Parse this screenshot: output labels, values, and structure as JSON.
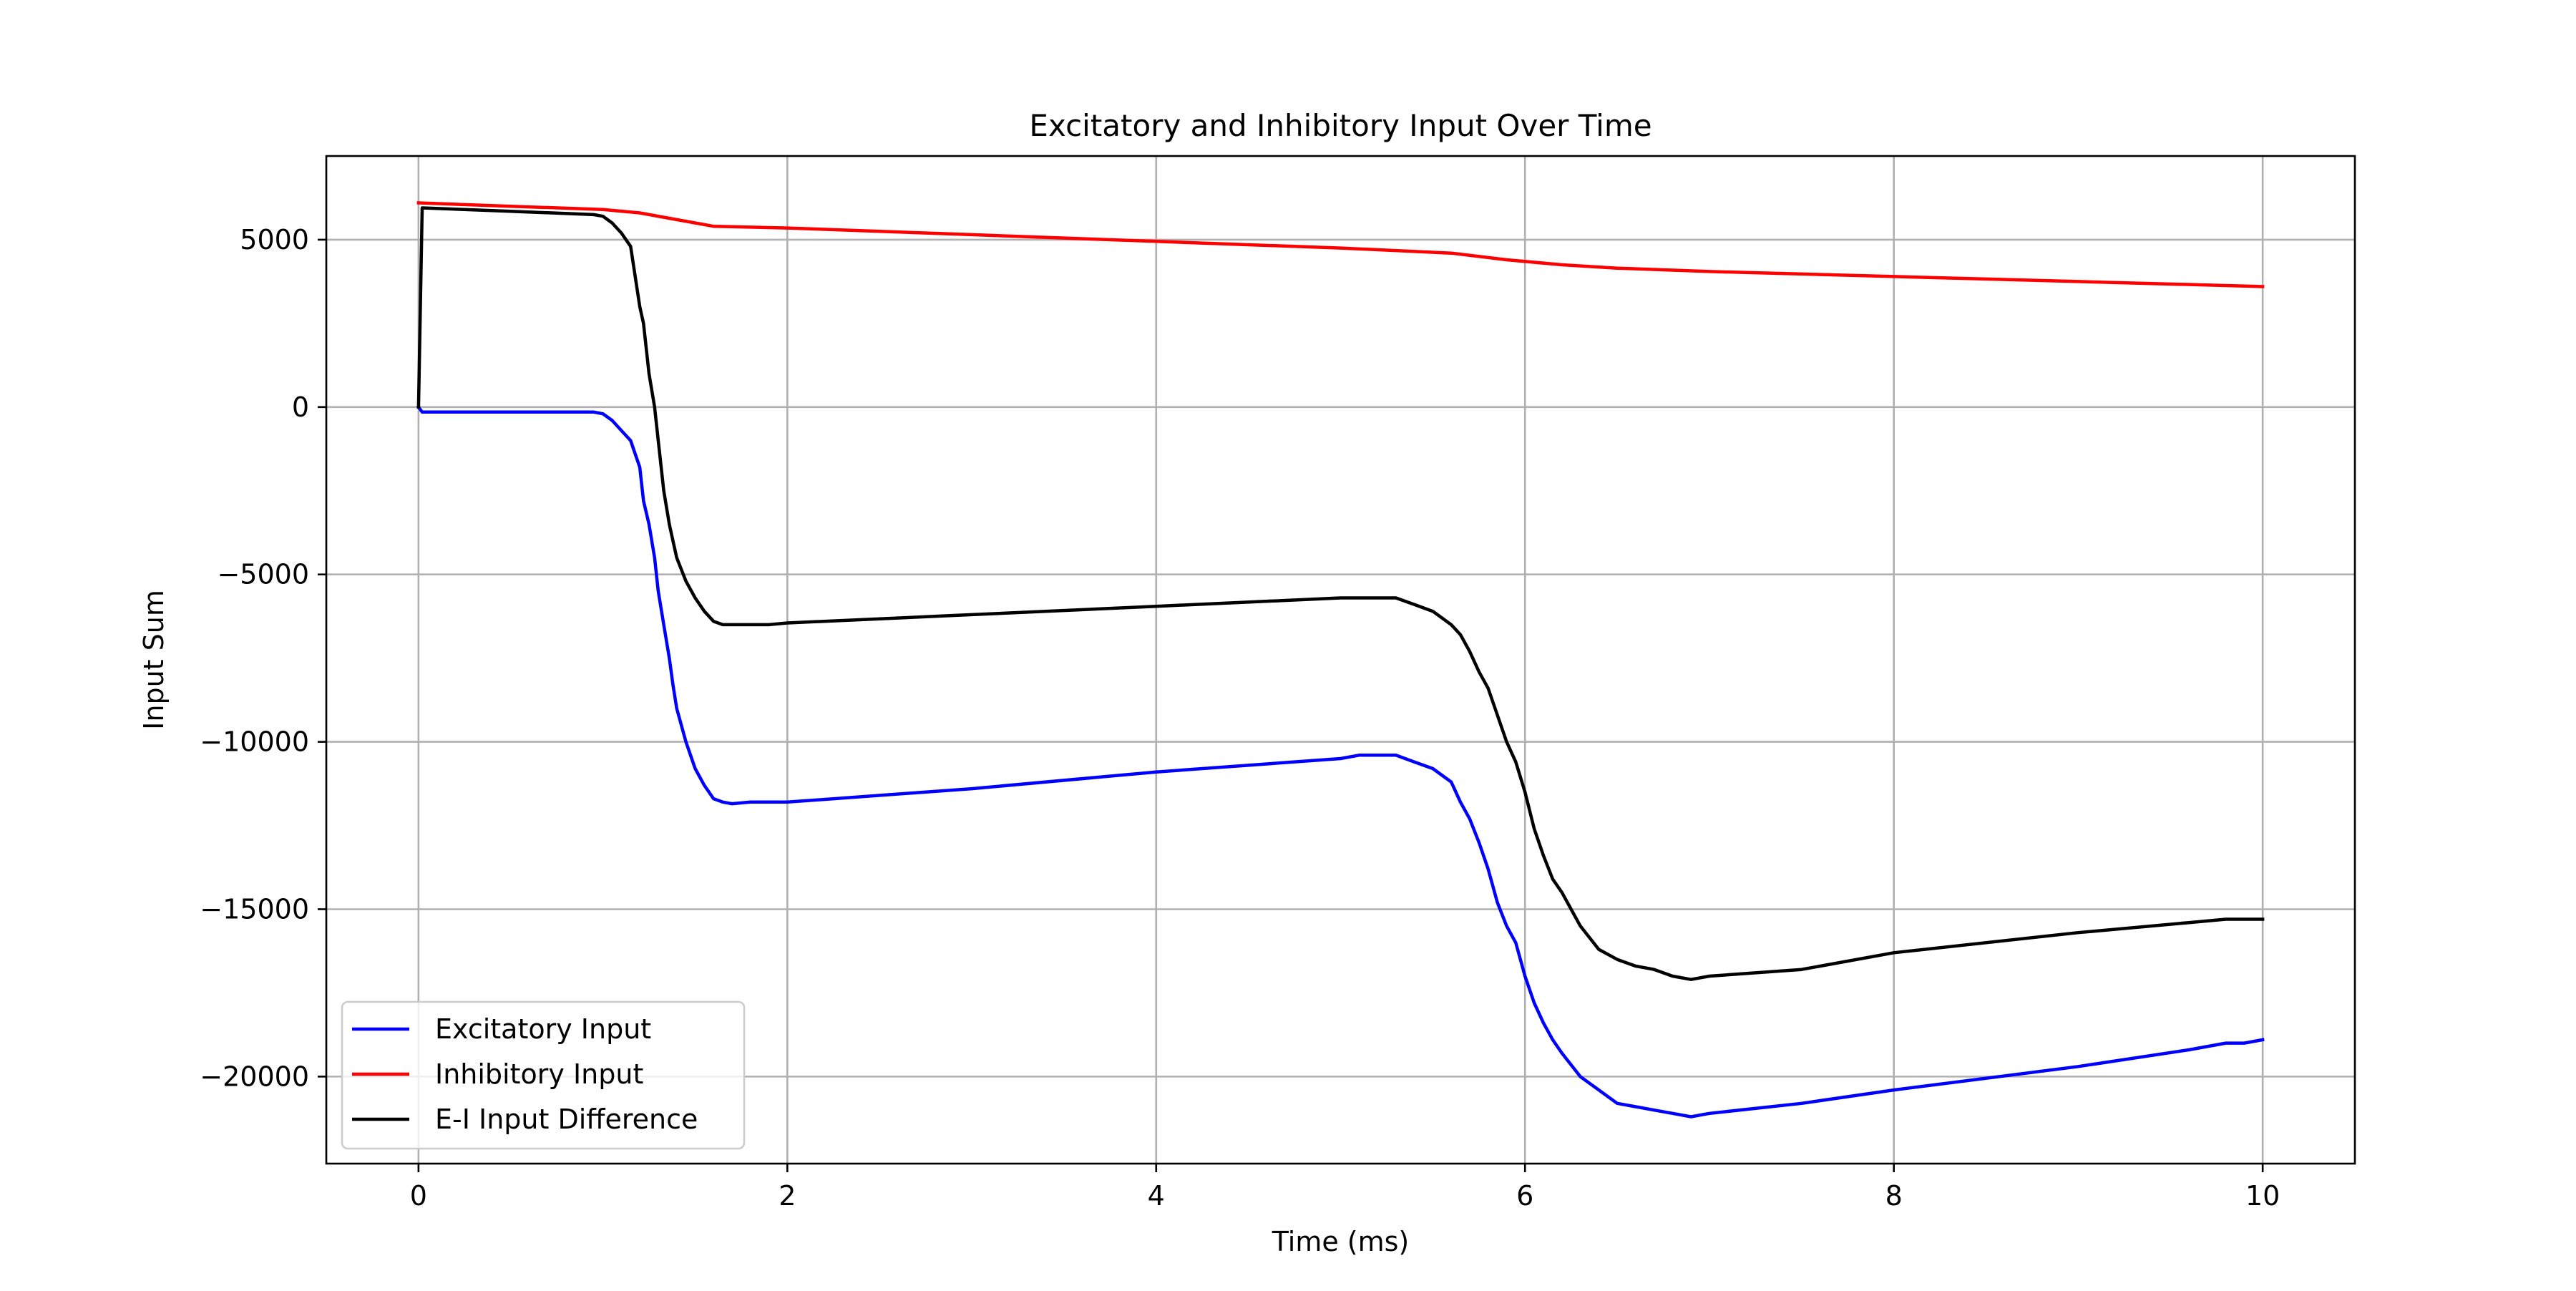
{
  "chart_data": {
    "type": "line",
    "title": "Excitatory and Inhibitory Input Over Time",
    "xlabel": "Time (ms)",
    "ylabel": "Input Sum",
    "xlim": [
      -0.5,
      10.5
    ],
    "ylim": [
      -22600,
      7500
    ],
    "xticks": [
      0,
      2,
      4,
      6,
      8,
      10
    ],
    "yticks": [
      5000,
      0,
      -5000,
      -10000,
      -15000,
      -20000
    ],
    "xtick_labels": [
      "0",
      "2",
      "4",
      "6",
      "8",
      "10"
    ],
    "ytick_labels": [
      "5000",
      "0",
      "−5000",
      "−10000",
      "−15000",
      "−20000"
    ],
    "grid": true,
    "legend_position": "lower-left",
    "series": [
      {
        "name": "Excitatory Input",
        "color": "#0000ff",
        "x": [
          0,
          0.02,
          0.5,
          0.95,
          1.0,
          1.05,
          1.1,
          1.15,
          1.2,
          1.22,
          1.25,
          1.28,
          1.3,
          1.33,
          1.36,
          1.38,
          1.4,
          1.45,
          1.5,
          1.55,
          1.6,
          1.65,
          1.7,
          1.8,
          1.9,
          2.0,
          3.0,
          4.0,
          5.0,
          5.1,
          5.3,
          5.4,
          5.5,
          5.6,
          5.65,
          5.7,
          5.75,
          5.8,
          5.85,
          5.9,
          5.95,
          6.0,
          6.05,
          6.1,
          6.15,
          6.2,
          6.3,
          6.4,
          6.5,
          6.6,
          6.7,
          6.8,
          6.9,
          7.0,
          7.5,
          8.0,
          9.0,
          9.6,
          9.8,
          9.9,
          10.0
        ],
        "y": [
          0,
          -150,
          -150,
          -150,
          -200,
          -400,
          -700,
          -1000,
          -1800,
          -2800,
          -3500,
          -4500,
          -5500,
          -6500,
          -7500,
          -8300,
          -9000,
          -10000,
          -10800,
          -11300,
          -11700,
          -11800,
          -11850,
          -11800,
          -11800,
          -11800,
          -11400,
          -10900,
          -10500,
          -10400,
          -10400,
          -10600,
          -10800,
          -11200,
          -11800,
          -12300,
          -13000,
          -13800,
          -14800,
          -15500,
          -16000,
          -17000,
          -17800,
          -18400,
          -18900,
          -19300,
          -20000,
          -20400,
          -20800,
          -20900,
          -21000,
          -21100,
          -21200,
          -21100,
          -20800,
          -20400,
          -19700,
          -19200,
          -19000,
          -19000,
          -18900
        ]
      },
      {
        "name": "Inhibitory Input",
        "color": "#ff0000",
        "x": [
          0,
          0.5,
          1.0,
          1.2,
          1.4,
          1.6,
          2.0,
          3.0,
          4.0,
          5.0,
          5.6,
          5.9,
          6.2,
          6.5,
          7.0,
          8.0,
          9.0,
          10.0
        ],
        "y": [
          6100,
          6000,
          5900,
          5800,
          5600,
          5400,
          5350,
          5150,
          4950,
          4750,
          4600,
          4400,
          4250,
          4150,
          4050,
          3900,
          3750,
          3600
        ]
      },
      {
        "name": "E-I Input Difference",
        "color": "#000000",
        "x": [
          0,
          0.02,
          0.5,
          0.95,
          1.0,
          1.05,
          1.1,
          1.15,
          1.2,
          1.22,
          1.25,
          1.28,
          1.3,
          1.33,
          1.36,
          1.38,
          1.4,
          1.45,
          1.5,
          1.55,
          1.6,
          1.65,
          1.7,
          1.8,
          1.9,
          2.0,
          3.0,
          4.0,
          5.0,
          5.1,
          5.3,
          5.4,
          5.5,
          5.6,
          5.65,
          5.7,
          5.75,
          5.8,
          5.85,
          5.9,
          5.95,
          6.0,
          6.05,
          6.1,
          6.15,
          6.2,
          6.3,
          6.4,
          6.5,
          6.6,
          6.7,
          6.8,
          6.9,
          7.0,
          7.5,
          8.0,
          9.0,
          9.6,
          9.8,
          9.9,
          10.0
        ],
        "y": [
          0,
          5950,
          5850,
          5750,
          5700,
          5500,
          5200,
          4800,
          3000,
          2500,
          1000,
          0,
          -1000,
          -2500,
          -3500,
          -4000,
          -4500,
          -5200,
          -5700,
          -6100,
          -6400,
          -6500,
          -6500,
          -6500,
          -6500,
          -6450,
          -6200,
          -5950,
          -5700,
          -5700,
          -5700,
          -5900,
          -6100,
          -6500,
          -6800,
          -7300,
          -7900,
          -8400,
          -9200,
          -10000,
          -10600,
          -11500,
          -12600,
          -13400,
          -14100,
          -14500,
          -15500,
          -16200,
          -16500,
          -16700,
          -16800,
          -17000,
          -17100,
          -17000,
          -16800,
          -16300,
          -15700,
          -15400,
          -15300,
          -15300,
          -15300
        ]
      }
    ]
  }
}
